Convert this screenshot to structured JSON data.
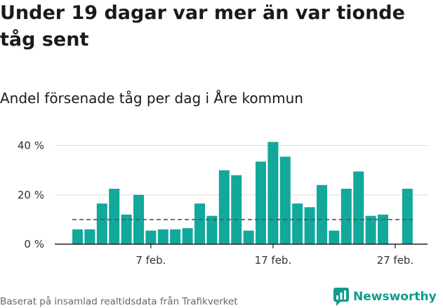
{
  "header": {
    "title": "Under 19 dagar var mer än var tionde tåg sent",
    "subtitle": "Andel försenade tåg per dag i Åre kommun"
  },
  "footer": {
    "source": "Baserat på insamlad realtidsdata från Trafikverket",
    "brand": "Newsworthy",
    "brand_icon": "newsworthy-logo-icon"
  },
  "colors": {
    "bar": "#12a89b",
    "reference_line": "#555555",
    "grid": "#dddddd",
    "brand": "#0f9b8e"
  },
  "chart_data": {
    "type": "bar",
    "x": [
      "1 feb.",
      "2 feb.",
      "3 feb.",
      "4 feb.",
      "5 feb.",
      "6 feb.",
      "7 feb.",
      "8 feb.",
      "9 feb.",
      "10 feb.",
      "11 feb.",
      "12 feb.",
      "13 feb.",
      "14 feb.",
      "15 feb.",
      "16 feb.",
      "17 feb.",
      "18 feb.",
      "19 feb.",
      "20 feb.",
      "21 feb.",
      "22 feb.",
      "23 feb.",
      "24 feb.",
      "25 feb.",
      "26 feb.",
      "27 feb.",
      "28 feb."
    ],
    "values": [
      6,
      6,
      16.5,
      22.5,
      12,
      20,
      5.5,
      6,
      6,
      6.5,
      16.5,
      11.5,
      30,
      28,
      5.5,
      33.5,
      41.5,
      35.5,
      16.5,
      15,
      24,
      5.5,
      22.5,
      29.5,
      11.5,
      12,
      null,
      22.5
    ],
    "reference_line": 10,
    "ylim": [
      0,
      45
    ],
    "yticks": [
      {
        "value": 0,
        "label": "0 %"
      },
      {
        "value": 20,
        "label": "20 %"
      },
      {
        "value": 40,
        "label": "40 %"
      }
    ],
    "xticks": [
      {
        "index": 6,
        "label": "7 feb."
      },
      {
        "index": 16,
        "label": "17 feb."
      },
      {
        "index": 26,
        "label": "27 feb."
      }
    ],
    "grid": true,
    "legend": "none"
  }
}
